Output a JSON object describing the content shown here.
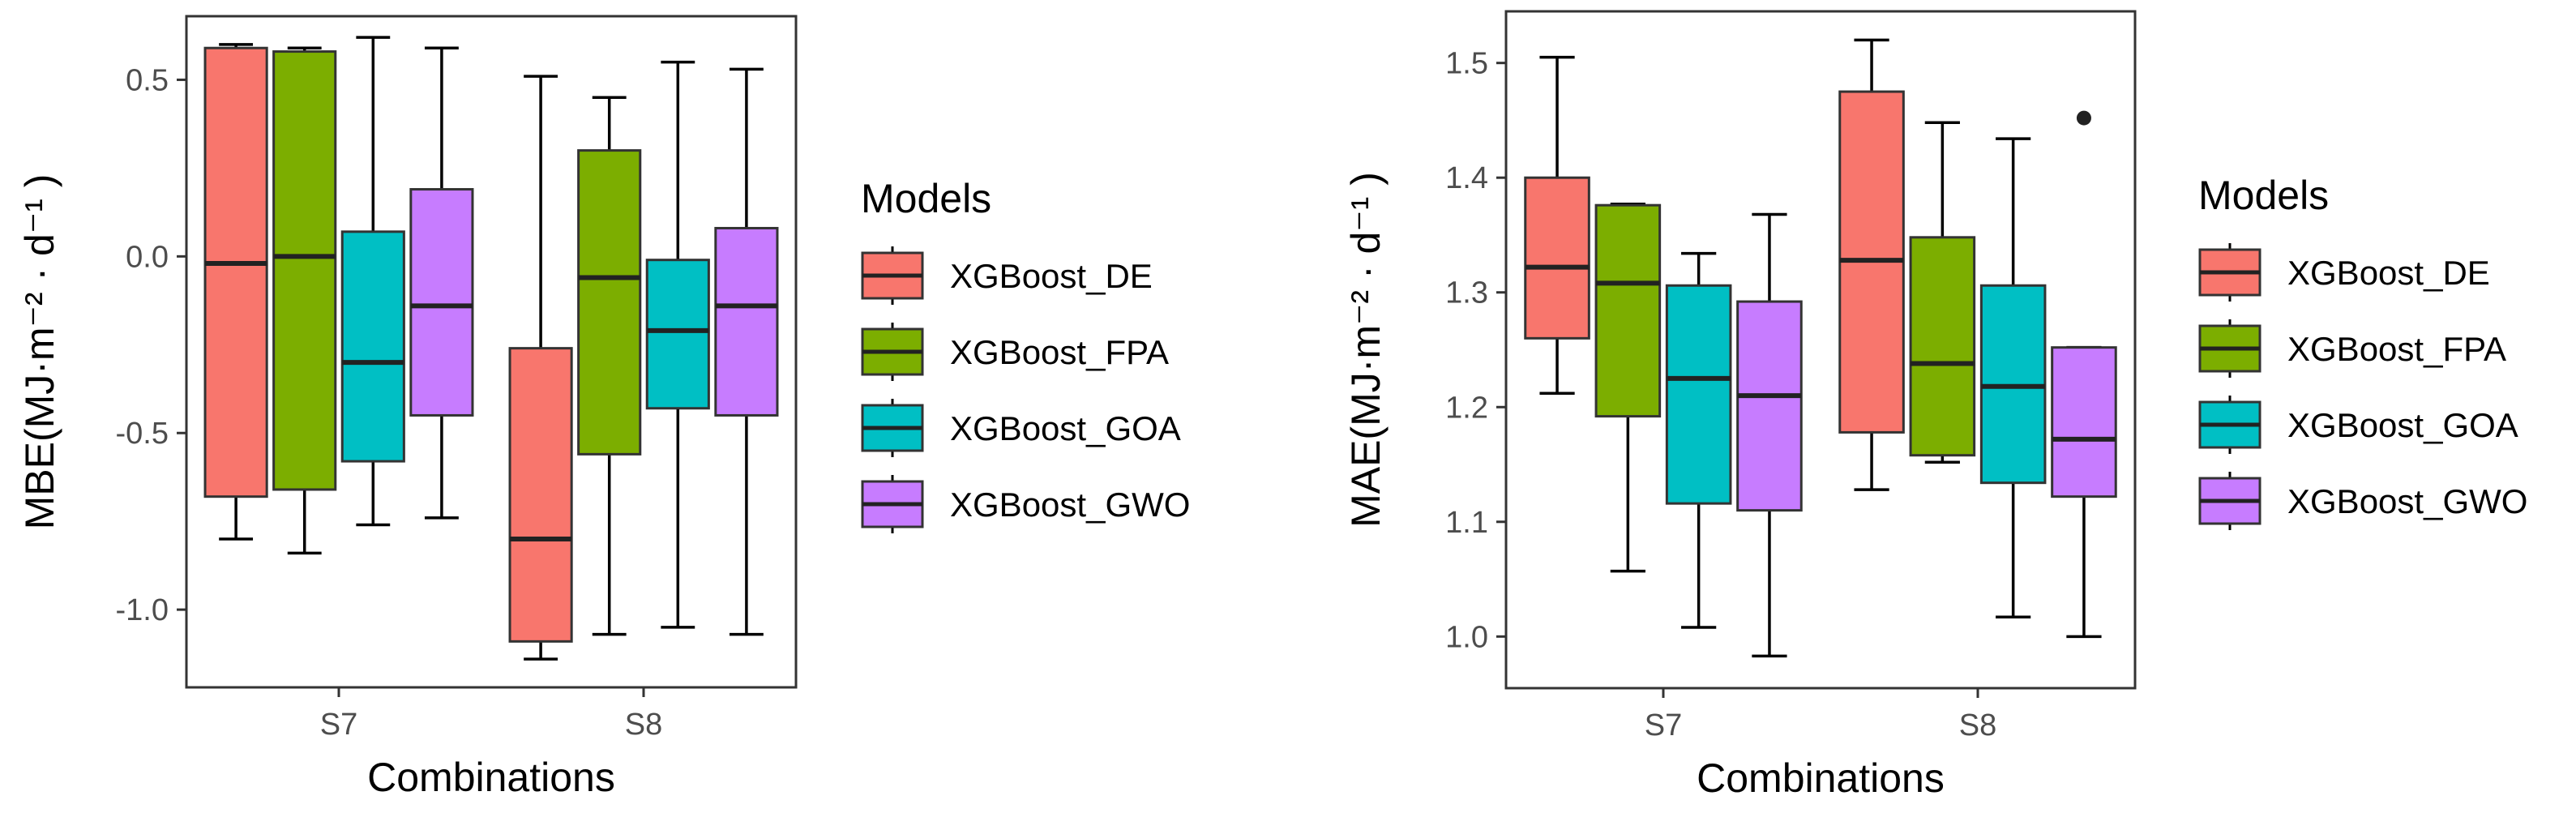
{
  "chart_data": [
    {
      "type": "boxplot",
      "title": "",
      "xlabel": "Combinations",
      "ylabel": "MBE(MJ·m⁻² · d⁻¹ )",
      "ylim": [
        -1.22,
        0.68
      ],
      "yticks": [
        0.5,
        0.0,
        -0.5,
        -1.0
      ],
      "ytick_labels": [
        "0.5",
        "0.0",
        "-0.5",
        "-1.0"
      ],
      "categories": [
        "S7",
        "S8"
      ],
      "legend_title": "Models",
      "grid": false,
      "series": [
        {
          "name": "XGBoost_DE",
          "color": "#F8766D",
          "boxes": [
            {
              "min": -0.8,
              "q1": -0.68,
              "median": -0.02,
              "q3": 0.59,
              "max": 0.6
            },
            {
              "min": -1.14,
              "q1": -1.09,
              "median": -0.8,
              "q3": -0.26,
              "max": 0.51
            }
          ]
        },
        {
          "name": "XGBoost_FPA",
          "color": "#7CAE00",
          "boxes": [
            {
              "min": -0.84,
              "q1": -0.66,
              "median": 0.0,
              "q3": 0.58,
              "max": 0.59
            },
            {
              "min": -1.07,
              "q1": -0.56,
              "median": -0.06,
              "q3": 0.3,
              "max": 0.45
            }
          ]
        },
        {
          "name": "XGBoost_GOA",
          "color": "#00BFC4",
          "boxes": [
            {
              "min": -0.76,
              "q1": -0.58,
              "median": -0.3,
              "q3": 0.07,
              "max": 0.62
            },
            {
              "min": -1.05,
              "q1": -0.43,
              "median": -0.21,
              "q3": -0.01,
              "max": 0.55
            }
          ]
        },
        {
          "name": "XGBoost_GWO",
          "color": "#C77CFF",
          "boxes": [
            {
              "min": -0.74,
              "q1": -0.45,
              "median": -0.14,
              "q3": 0.19,
              "max": 0.59
            },
            {
              "min": -1.07,
              "q1": -0.45,
              "median": -0.14,
              "q3": 0.08,
              "max": 0.53
            }
          ]
        }
      ]
    },
    {
      "type": "boxplot",
      "title": "",
      "xlabel": "Combinations",
      "ylabel": "MAE(MJ·m⁻² · d⁻¹ )",
      "ylim": [
        0.955,
        1.545
      ],
      "yticks": [
        1.5,
        1.4,
        1.3,
        1.2,
        1.1,
        1.0
      ],
      "ytick_labels": [
        "1.5",
        "1.4",
        "1.3",
        "1.2",
        "1.1",
        "1.0"
      ],
      "categories": [
        "S7",
        "S8"
      ],
      "legend_title": "Models",
      "grid": false,
      "series": [
        {
          "name": "XGBoost_DE",
          "color": "#F8766D",
          "boxes": [
            {
              "min": 1.212,
              "q1": 1.26,
              "median": 1.322,
              "q3": 1.4,
              "max": 1.505
            },
            {
              "min": 1.128,
              "q1": 1.178,
              "median": 1.328,
              "q3": 1.475,
              "max": 1.52
            }
          ]
        },
        {
          "name": "XGBoost_FPA",
          "color": "#7CAE00",
          "boxes": [
            {
              "min": 1.057,
              "q1": 1.192,
              "median": 1.308,
              "q3": 1.376,
              "max": 1.377
            },
            {
              "min": 1.152,
              "q1": 1.158,
              "median": 1.238,
              "q3": 1.348,
              "max": 1.448
            }
          ]
        },
        {
          "name": "XGBoost_GOA",
          "color": "#00BFC4",
          "boxes": [
            {
              "min": 1.008,
              "q1": 1.116,
              "median": 1.225,
              "q3": 1.306,
              "max": 1.334
            },
            {
              "min": 1.017,
              "q1": 1.134,
              "median": 1.218,
              "q3": 1.306,
              "max": 1.434
            }
          ]
        },
        {
          "name": "XGBoost_GWO",
          "color": "#C77CFF",
          "boxes": [
            {
              "min": 0.983,
              "q1": 1.11,
              "median": 1.21,
              "q3": 1.292,
              "max": 1.368
            },
            {
              "min": 1.0,
              "q1": 1.122,
              "median": 1.172,
              "q3": 1.252,
              "max": 1.252,
              "outliers": [
                1.452
              ]
            }
          ]
        }
      ]
    }
  ]
}
